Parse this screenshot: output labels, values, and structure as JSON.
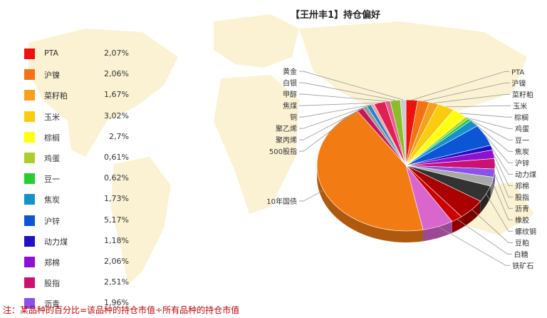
{
  "title": "【王卅丰1】持仓偏好",
  "footnote": "注：某品种的百分比=该品种的持仓市值÷所有品种的持仓市值",
  "chart_data": {
    "type": "pie",
    "title": "【王卅丰1】持仓偏好",
    "legend": [
      {
        "name": "PTA",
        "value": "2,07%",
        "color": "#ee1111"
      },
      {
        "name": "沪镍",
        "value": "2,06%",
        "color": "#f57214"
      },
      {
        "name": "菜籽粕",
        "value": "1,67%",
        "color": "#f6a11c"
      },
      {
        "name": "玉米",
        "value": "3,02%",
        "color": "#f9cc0f"
      },
      {
        "name": "棕榈",
        "value": "2,7%",
        "color": "#ffff12"
      },
      {
        "name": "鸡蛋",
        "value": "0,61%",
        "color": "#a8cf2b"
      },
      {
        "name": "豆一",
        "value": "0,62%",
        "color": "#27cc33"
      },
      {
        "name": "焦炭",
        "value": "1,73%",
        "color": "#1592c9"
      },
      {
        "name": "沪锌",
        "value": "5,17%",
        "color": "#0c56d6"
      },
      {
        "name": "动力煤",
        "value": "1,18%",
        "color": "#2011c4"
      },
      {
        "name": "郑棉",
        "value": "2,06%",
        "color": "#8d11ce"
      },
      {
        "name": "股指",
        "value": "2,51%",
        "color": "#cd1173"
      },
      {
        "name": "沥青",
        "value": "1,96%",
        "color": "#8a52e6"
      }
    ],
    "slices": [
      {
        "name": "PTA",
        "value": 2.07,
        "color": "#ee1111"
      },
      {
        "name": "沪镍",
        "value": 2.06,
        "color": "#f57214"
      },
      {
        "name": "菜籽粕",
        "value": 1.67,
        "color": "#f6a11c"
      },
      {
        "name": "玉米",
        "value": 3.02,
        "color": "#f9cc0f"
      },
      {
        "name": "棕榈",
        "value": 2.7,
        "color": "#ffff12"
      },
      {
        "name": "鸡蛋",
        "value": 0.61,
        "color": "#a8cf2b"
      },
      {
        "name": "豆一",
        "value": 0.62,
        "color": "#27cc33"
      },
      {
        "name": "焦炭",
        "value": 1.73,
        "color": "#1592c9"
      },
      {
        "name": "沪锌",
        "value": 5.17,
        "color": "#0c56d6"
      },
      {
        "name": "动力煤",
        "value": 1.18,
        "color": "#2011c4"
      },
      {
        "name": "郑棉",
        "value": 2.06,
        "color": "#8d11ce"
      },
      {
        "name": "股指",
        "value": 2.51,
        "color": "#cd1173"
      },
      {
        "name": "沥青",
        "value": 1.96,
        "color": "#8a52e6"
      },
      {
        "name": "橡胶",
        "value": 2.2,
        "color": "#a8a8a8"
      },
      {
        "name": "螺纹钢",
        "value": 4.0,
        "color": "#333333"
      },
      {
        "name": "豆粕",
        "value": 5.0,
        "color": "#aa0000"
      },
      {
        "name": "白糖",
        "value": 2.0,
        "color": "#cc0000"
      },
      {
        "name": "铁矿石",
        "value": 5.5,
        "color": "#d966cc"
      },
      {
        "name": "10年国债",
        "value": 43.0,
        "color": "#f37b14"
      },
      {
        "name": "500股指",
        "value": 1.2,
        "color": "#c2185b"
      },
      {
        "name": "聚丙烯",
        "value": 0.8,
        "color": "#999999"
      },
      {
        "name": "聚乙烯",
        "value": 0.8,
        "color": "#1e88c8"
      },
      {
        "name": "铜",
        "value": 0.6,
        "color": "#f0a0a0"
      },
      {
        "name": "焦煤",
        "value": 2.0,
        "color": "#e02050"
      },
      {
        "name": "甲醇",
        "value": 0.9,
        "color": "#e06090"
      },
      {
        "name": "白银",
        "value": 1.8,
        "color": "#8dbb2a"
      },
      {
        "name": "黄金",
        "value": 1.0,
        "color": "#cccccc"
      }
    ]
  }
}
